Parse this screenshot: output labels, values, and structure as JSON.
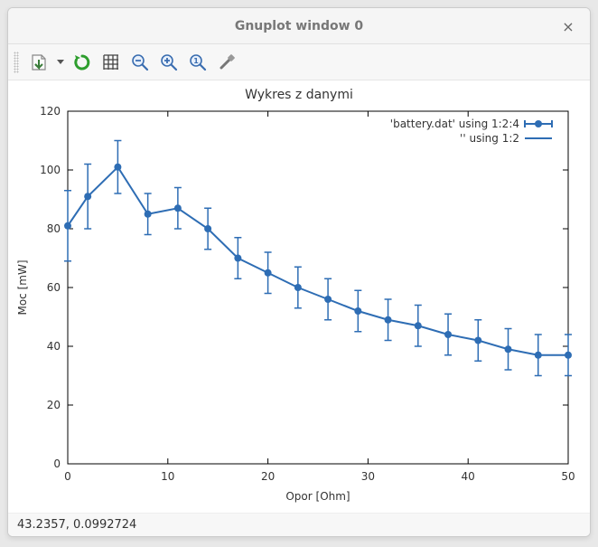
{
  "window": {
    "title": "Gnuplot window 0",
    "close_label": "×"
  },
  "toolbar": {
    "items": [
      {
        "name": "export-icon"
      },
      {
        "name": "dropdown-icon"
      },
      {
        "name": "refresh-icon"
      },
      {
        "name": "grid-icon"
      },
      {
        "name": "zoom-out-icon"
      },
      {
        "name": "zoom-in-icon"
      },
      {
        "name": "zoom-reset-icon"
      },
      {
        "name": "settings-icon"
      }
    ]
  },
  "statusbar": {
    "coords": "43.2357, 0.0992724"
  },
  "chart": {
    "type": "line-errorbar",
    "title": "Wykres z danymi",
    "title_fontsize": 14,
    "xlabel": "Opor [Ohm]",
    "ylabel": "Moc [mW]",
    "label_fontsize": 12,
    "xlim": [
      0,
      50
    ],
    "ylim": [
      0,
      120
    ],
    "xtick_step": 10,
    "ytick_step": 20,
    "xticks": [
      0,
      10,
      20,
      30,
      40,
      50
    ],
    "yticks": [
      0,
      20,
      40,
      60,
      80,
      100,
      120
    ],
    "plot_bg": "#ffffff",
    "axis_color": "#000000",
    "tick_color": "#000000",
    "text_color": "#333333",
    "series_color": "#2e6db4",
    "line_width": 2,
    "marker_size": 4,
    "errorbar_cap": 4,
    "legend": {
      "position": "top-right",
      "items": [
        {
          "label": "'battery.dat' using 1:2:4",
          "type": "errorbar"
        },
        {
          "label": "'' using 1:2",
          "type": "line"
        }
      ]
    },
    "data": [
      {
        "x": 0,
        "y": 81,
        "err": 12
      },
      {
        "x": 2,
        "y": 91,
        "err": 11
      },
      {
        "x": 5,
        "y": 101,
        "err": 9
      },
      {
        "x": 8,
        "y": 85,
        "err": 7
      },
      {
        "x": 11,
        "y": 87,
        "err": 7
      },
      {
        "x": 14,
        "y": 80,
        "err": 7
      },
      {
        "x": 17,
        "y": 70,
        "err": 7
      },
      {
        "x": 20,
        "y": 65,
        "err": 7
      },
      {
        "x": 23,
        "y": 60,
        "err": 7
      },
      {
        "x": 26,
        "y": 56,
        "err": 7
      },
      {
        "x": 29,
        "y": 52,
        "err": 7
      },
      {
        "x": 32,
        "y": 49,
        "err": 7
      },
      {
        "x": 35,
        "y": 47,
        "err": 7
      },
      {
        "x": 38,
        "y": 44,
        "err": 7
      },
      {
        "x": 41,
        "y": 42,
        "err": 7
      },
      {
        "x": 44,
        "y": 39,
        "err": 7
      },
      {
        "x": 47,
        "y": 37,
        "err": 7
      },
      {
        "x": 50,
        "y": 37,
        "err": 7
      }
    ]
  }
}
